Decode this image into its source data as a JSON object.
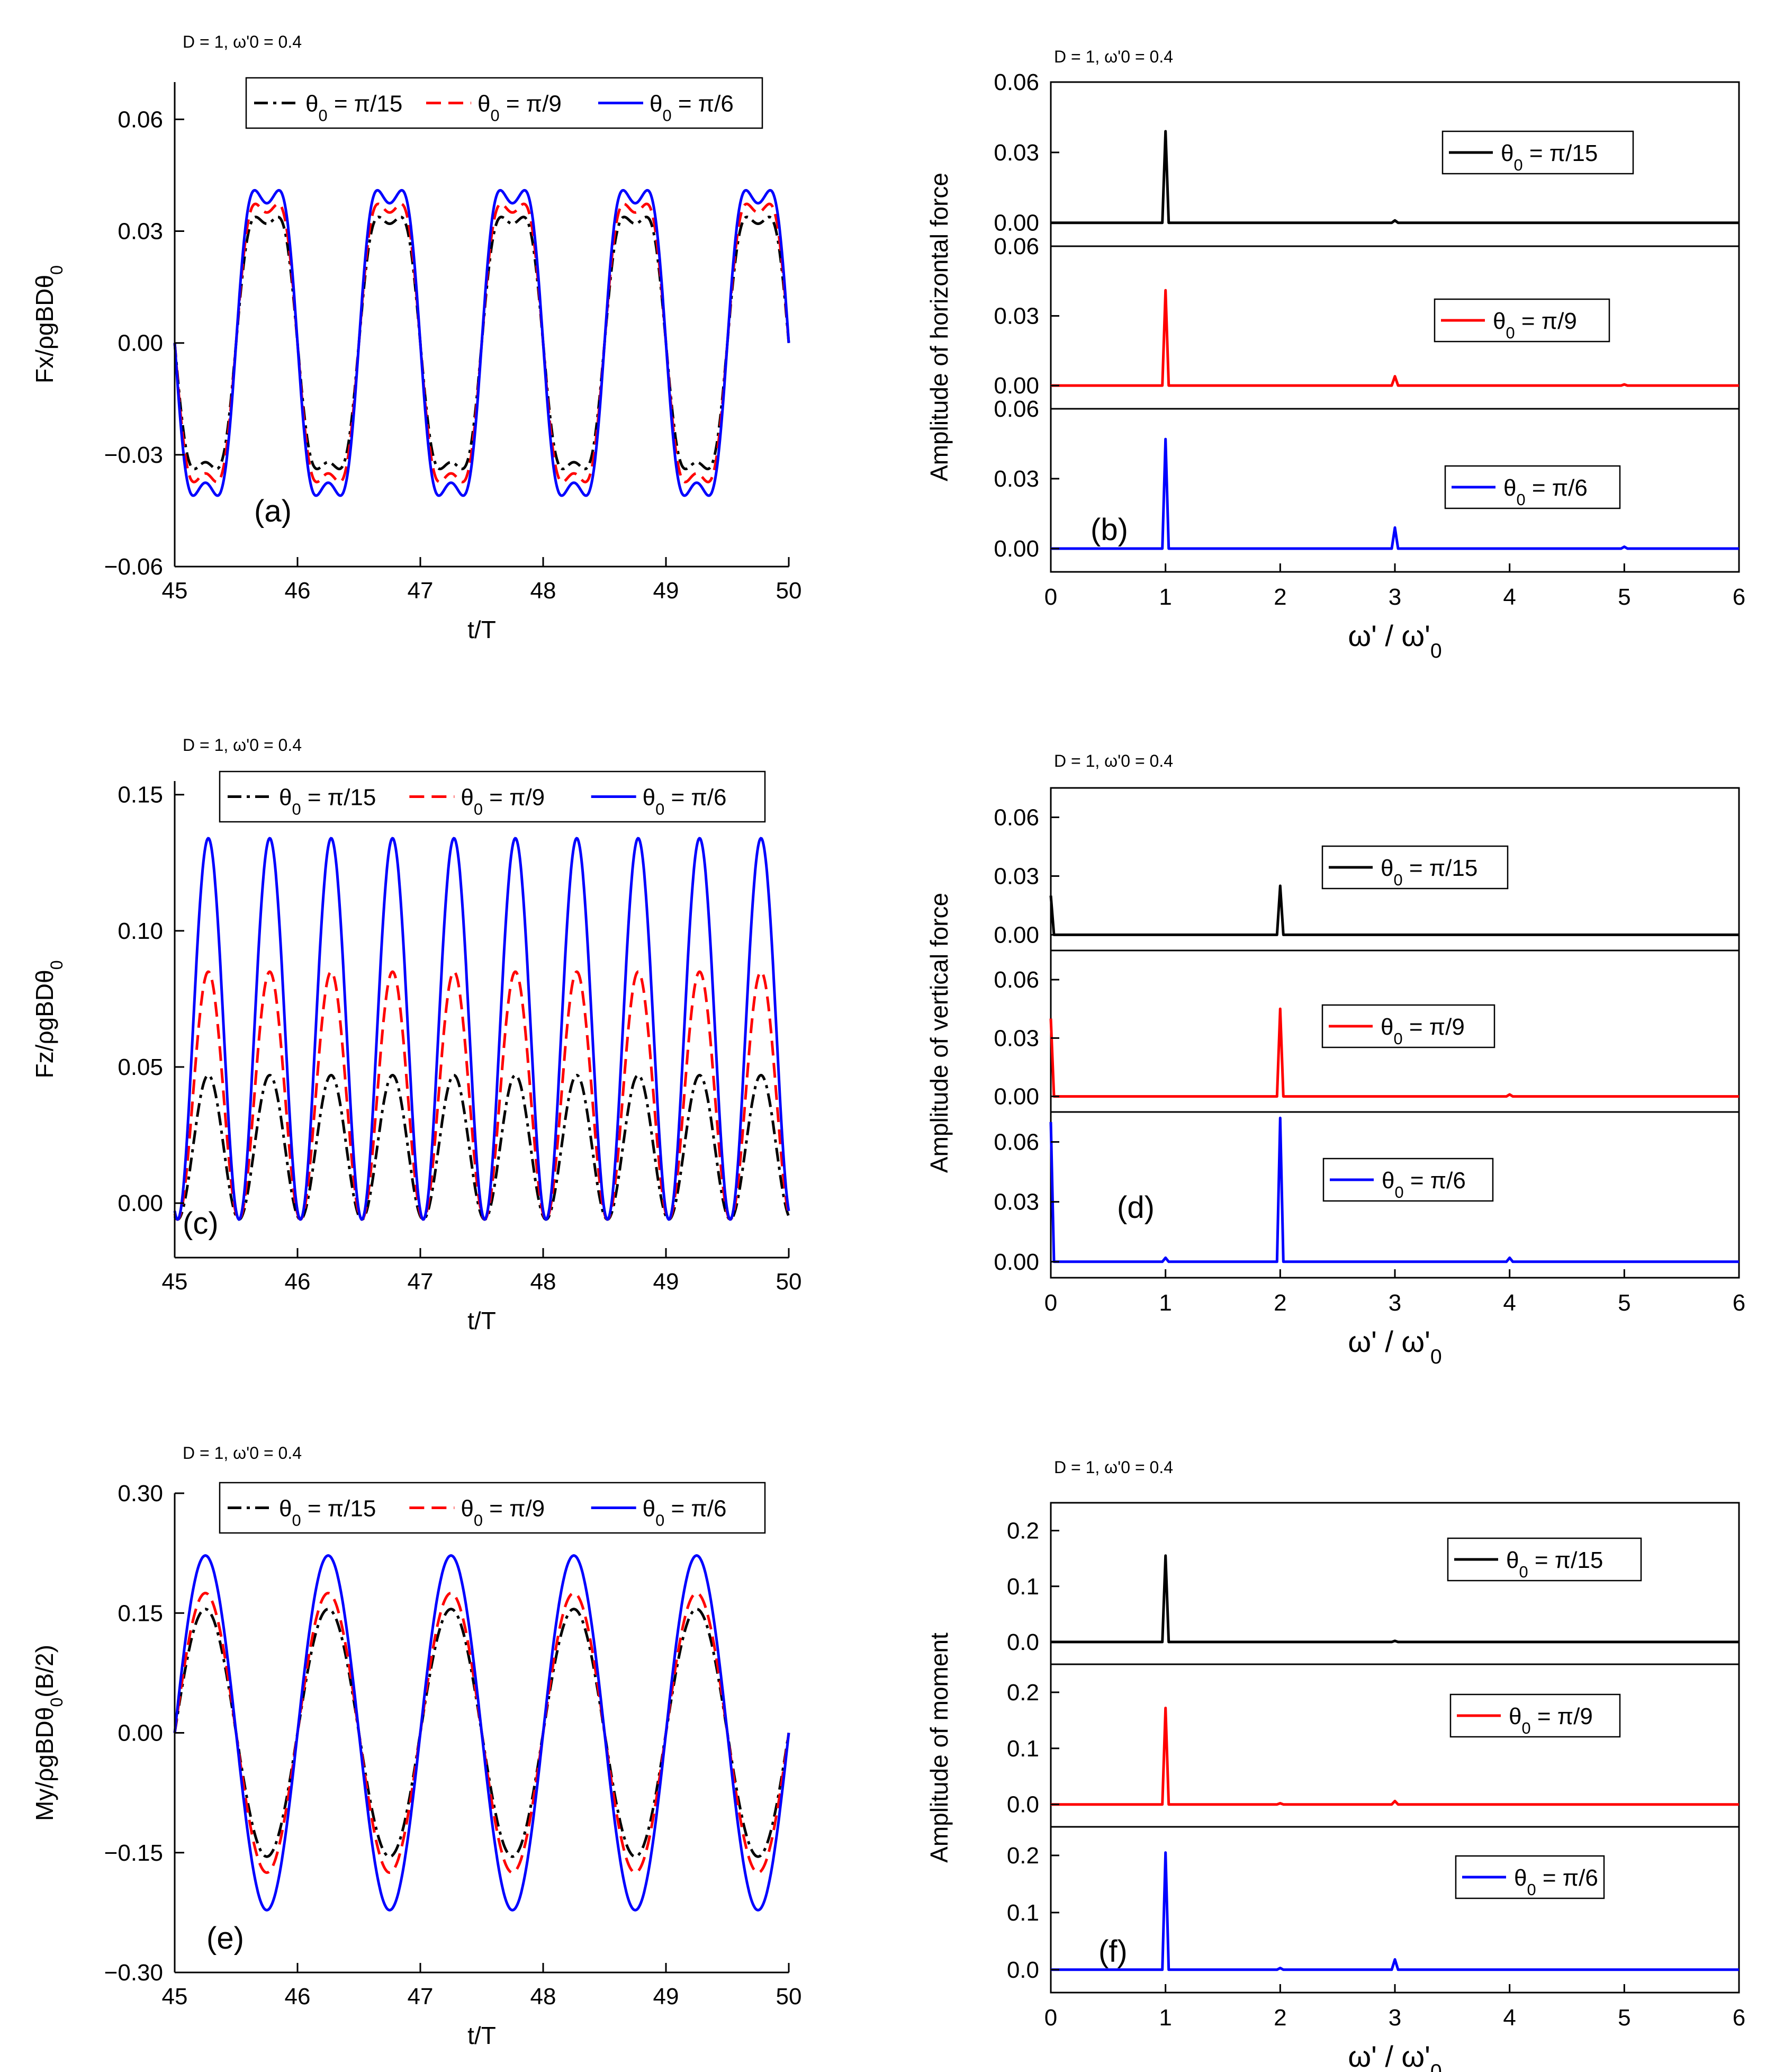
{
  "figure_note": "D = 1, ω'0 = 0.4",
  "chart_data": [
    {
      "id": "a",
      "type": "line",
      "panel_label": "(a)",
      "xlabel": "t/T",
      "ylabel": "Fx/ρgBDθ0",
      "xlim": [
        45,
        50
      ],
      "ylim": [
        -0.06,
        0.07
      ],
      "xticks": [
        "45",
        "46",
        "47",
        "48",
        "49",
        "50"
      ],
      "yticks": [
        "-0.06",
        "-0.03",
        "0.00",
        "0.03",
        "0.06"
      ],
      "series": [
        {
          "name": "θ0 = π/15",
          "color": "#000000",
          "dash": "dashdot",
          "amp1": 0.039,
          "amp3": 0.007,
          "mean": 0,
          "period": 1
        },
        {
          "name": "θ0 = π/9",
          "color": "#ff0000",
          "dash": "dash",
          "amp1": 0.043,
          "amp3": 0.008,
          "mean": 0,
          "period": 1
        },
        {
          "name": "θ0 = π/6",
          "color": "#0000ff",
          "dash": "solid",
          "amp1": 0.047,
          "amp3": 0.0095,
          "mean": 0,
          "period": 1
        }
      ]
    },
    {
      "id": "c",
      "type": "line",
      "panel_label": "(c)",
      "xlabel": "t/T",
      "ylabel": "Fz/ρgBDθ0",
      "xlim": [
        45,
        50
      ],
      "ylim": [
        -0.02,
        0.155
      ],
      "xticks": [
        "45",
        "46",
        "47",
        "48",
        "49",
        "50"
      ],
      "yticks": [
        "0.00",
        "0.05",
        "0.10",
        "0.15"
      ],
      "series": [
        {
          "name": "θ0 = π/15",
          "color": "#000000",
          "dash": "dashdot",
          "max": 0.047,
          "min": -0.006
        },
        {
          "name": "θ0 = π/9",
          "color": "#ff0000",
          "dash": "dash",
          "max": 0.085,
          "min": -0.006
        },
        {
          "name": "θ0 = π/6",
          "color": "#0000ff",
          "dash": "solid",
          "max": 0.134,
          "min": -0.006
        }
      ]
    },
    {
      "id": "e",
      "type": "line",
      "panel_label": "(e)",
      "xlabel": "t/T",
      "ylabel": "My/ρgBDθ0(B/2)",
      "xlim": [
        45,
        50
      ],
      "ylim": [
        -0.3,
        0.3
      ],
      "xticks": [
        "45",
        "46",
        "47",
        "48",
        "49",
        "50"
      ],
      "yticks": [
        "-0.30",
        "-0.15",
        "0.00",
        "0.15",
        "0.30"
      ],
      "series": [
        {
          "name": "θ0 = π/15",
          "color": "#000000",
          "dash": "dashdot",
          "amp": 0.155
        },
        {
          "name": "θ0 = π/9",
          "color": "#ff0000",
          "dash": "dash",
          "amp": 0.175
        },
        {
          "name": "θ0 = π/6",
          "color": "#0000ff",
          "dash": "solid",
          "amp": 0.222
        }
      ]
    },
    {
      "id": "b",
      "type": "spectrum",
      "panel_label": "(b)",
      "xlabel": "ω' / ω'0",
      "ylabel": "Amplitude of horizontal force",
      "xlim": [
        0,
        6
      ],
      "ylim": [
        -0.01,
        0.06
      ],
      "xticks": [
        "0",
        "1",
        "2",
        "3",
        "4",
        "5",
        "6"
      ],
      "yticks": [
        "0.00",
        "0.03",
        "0.06"
      ],
      "series": [
        {
          "name": "θ0 = π/15",
          "color": "#000000",
          "peaks": [
            [
              1,
              0.039
            ],
            [
              3,
              0.001
            ]
          ]
        },
        {
          "name": "θ0 = π/9",
          "color": "#ff0000",
          "peaks": [
            [
              1,
              0.041
            ],
            [
              3,
              0.004
            ],
            [
              5,
              0.0005
            ]
          ]
        },
        {
          "name": "θ0 = π/6",
          "color": "#0000ff",
          "peaks": [
            [
              1,
              0.047
            ],
            [
              3,
              0.009
            ],
            [
              5,
              0.0008
            ]
          ]
        }
      ]
    },
    {
      "id": "d",
      "type": "spectrum",
      "panel_label": "(d)",
      "xlabel": "ω' / ω'0",
      "ylabel": "Amplitude of vertical force",
      "xlim": [
        0,
        6
      ],
      "ylim": [
        -0.008,
        0.075
      ],
      "xticks": [
        "0",
        "1",
        "2",
        "3",
        "4",
        "5",
        "6"
      ],
      "yticks": [
        "0.00",
        "0.03",
        "0.06"
      ],
      "series": [
        {
          "name": "θ0 = π/15",
          "color": "#000000",
          "peaks": [
            [
              0,
              0.02
            ],
            [
              2,
              0.025
            ]
          ]
        },
        {
          "name": "θ0 = π/9",
          "color": "#ff0000",
          "peaks": [
            [
              0,
              0.04
            ],
            [
              2,
              0.045
            ],
            [
              4,
              0.001
            ]
          ]
        },
        {
          "name": "θ0 = π/6",
          "color": "#0000ff",
          "peaks": [
            [
              0,
              0.07
            ],
            [
              1,
              0.002
            ],
            [
              2,
              0.072
            ],
            [
              4,
              0.002
            ]
          ]
        }
      ]
    },
    {
      "id": "f",
      "type": "spectrum",
      "panel_label": "(f)",
      "xlabel": "ω' / ω'0",
      "ylabel": "Amplitude of moment",
      "xlim": [
        0,
        6
      ],
      "ylim": [
        -0.04,
        0.25
      ],
      "xticks": [
        "0",
        "1",
        "2",
        "3",
        "4",
        "5",
        "6"
      ],
      "yticks": [
        "0.0",
        "0.1",
        "0.2"
      ],
      "series": [
        {
          "name": "θ0 = π/15",
          "color": "#000000",
          "peaks": [
            [
              1,
              0.155
            ],
            [
              3,
              0.002
            ]
          ]
        },
        {
          "name": "θ0 = π/9",
          "color": "#ff0000",
          "peaks": [
            [
              1,
              0.172
            ],
            [
              2,
              0.002
            ],
            [
              3,
              0.006
            ]
          ]
        },
        {
          "name": "θ0 = π/6",
          "color": "#0000ff",
          "peaks": [
            [
              1,
              0.205
            ],
            [
              2,
              0.003
            ],
            [
              3,
              0.018
            ]
          ]
        }
      ]
    }
  ]
}
